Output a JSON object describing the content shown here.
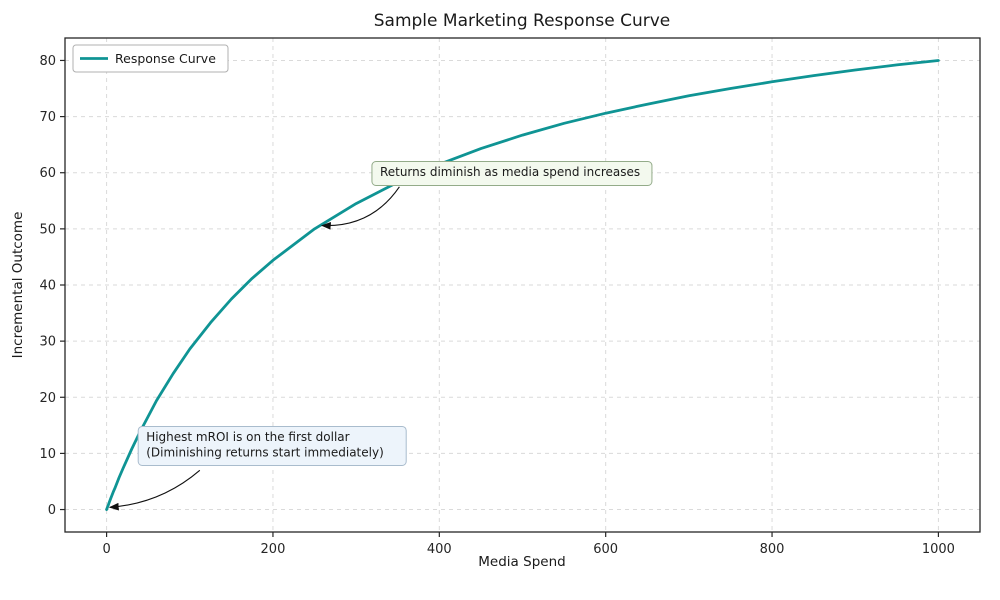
{
  "chart_data": {
    "type": "line",
    "title": "Sample Marketing Response Curve",
    "xlabel": "Media Spend",
    "ylabel": "Incremental Outcome",
    "xlim": [
      -50,
      1050
    ],
    "ylim": [
      -4,
      84
    ],
    "x_ticks": [
      0,
      200,
      400,
      600,
      800,
      1000
    ],
    "y_ticks": [
      0,
      10,
      20,
      30,
      40,
      50,
      60,
      70,
      80
    ],
    "grid": true,
    "grid_style": "dashed",
    "legend": {
      "position": "upper-left",
      "entries": [
        {
          "label": "Response Curve",
          "color": "#0f9494"
        }
      ]
    },
    "series": [
      {
        "name": "Response Curve",
        "color": "#0f9494",
        "x": [
          0,
          1,
          2,
          3,
          5,
          8,
          10,
          15,
          20,
          30,
          40,
          60,
          80,
          100,
          125,
          150,
          175,
          200,
          250,
          300,
          350,
          400,
          450,
          500,
          550,
          600,
          650,
          700,
          750,
          800,
          850,
          900,
          950,
          1000
        ],
        "y": [
          0,
          0.4,
          0.8,
          1.2,
          2.0,
          3.1,
          3.8,
          5.7,
          7.4,
          10.7,
          13.8,
          19.4,
          24.2,
          28.6,
          33.3,
          37.5,
          41.2,
          44.4,
          50.0,
          54.5,
          58.3,
          61.5,
          64.3,
          66.7,
          68.8,
          70.6,
          72.2,
          73.7,
          75.0,
          76.2,
          77.3,
          78.3,
          79.2,
          80.0
        ]
      }
    ],
    "annotations": [
      {
        "text_lines": [
          "Returns diminish as media spend increases"
        ],
        "box_fill": "#f3f9ee",
        "box_border": "#93ab89",
        "box_xy": [
          319,
          62
        ],
        "arrow_from": [
          352,
          57.5
        ],
        "arrow_to": [
          259,
          50.6
        ],
        "bend": 24
      },
      {
        "text_lines": [
          "Highest mROI is on the first dollar",
          "(Diminishing returns start immediately)"
        ],
        "box_fill": "#edf4fb",
        "box_border": "#a9bccd",
        "box_xy": [
          38,
          14.8
        ],
        "arrow_from": [
          112,
          7.0
        ],
        "arrow_to": [
          4,
          0.4
        ],
        "bend": 16
      }
    ]
  }
}
